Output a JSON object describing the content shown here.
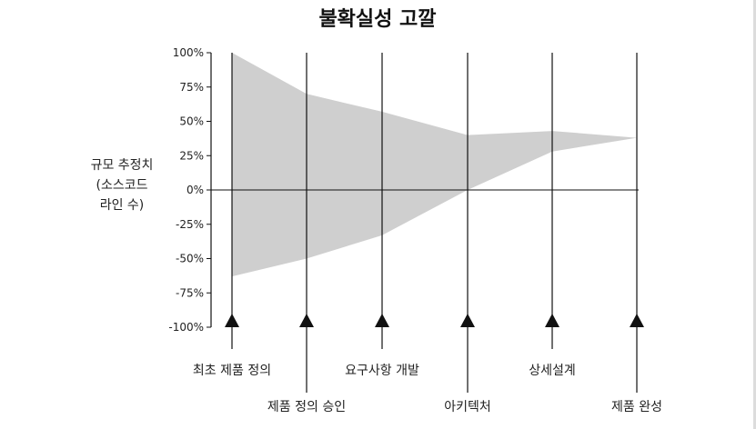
{
  "chart_data": {
    "type": "area",
    "title": "불확실성 고깔",
    "ylabel_lines": [
      "규모 추정치",
      "(소스코드",
      "라인 수)"
    ],
    "y_ticks": [
      "100%",
      "75%",
      "50%",
      "25%",
      "0%",
      "-25%",
      "-50%",
      "-75%",
      "-100%"
    ],
    "ylim": [
      -100,
      100
    ],
    "milestones": [
      {
        "label": "최초 제품 정의",
        "label_row": 1
      },
      {
        "label": "제품 정의 승인",
        "label_row": 2
      },
      {
        "label": "요구사항 개발",
        "label_row": 1
      },
      {
        "label": "아키텍처",
        "label_row": 2
      },
      {
        "label": "상세설계",
        "label_row": 1
      },
      {
        "label": "제품 완성",
        "label_row": 2
      }
    ],
    "series": [
      {
        "values_upper": [
          100,
          70,
          57,
          40,
          43,
          38
        ],
        "values_lower": [
          -63,
          -50,
          -33,
          0,
          28,
          38
        ]
      }
    ],
    "grid": false,
    "colors": {
      "band": "#cfcfcf",
      "axis": "#111111",
      "marker": "#111111"
    }
  }
}
